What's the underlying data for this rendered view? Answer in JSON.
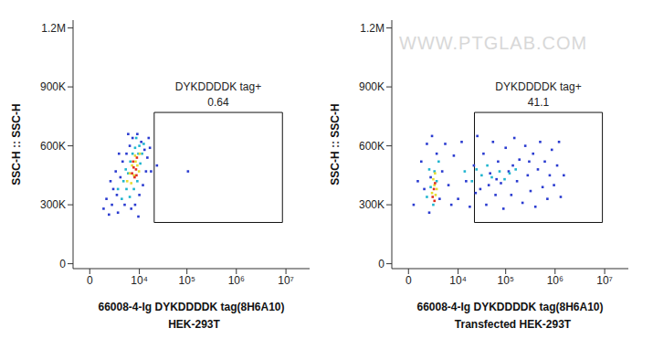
{
  "chart_data": [
    {
      "type": "scatter",
      "subtitle": "HEK-293T",
      "x_label": "66008-4-Ig DYKDDDDK tag(8H6A10)",
      "y_label": "SSC-H :: SSC-H",
      "log": "x",
      "xlim": [
        -1300,
        30000000
      ],
      "xticks": [
        0,
        {
          "value": 10000,
          "label": "10⁴"
        },
        {
          "value": 100000,
          "label": "10⁵"
        },
        {
          "value": 1000000,
          "label": "10⁶"
        },
        {
          "value": 10000000,
          "label": "10⁷"
        }
      ],
      "ylim": [
        -25000,
        1240000
      ],
      "yticks": [
        0,
        {
          "value": 300000,
          "label": "300K"
        },
        {
          "value": 600000,
          "label": "600K"
        },
        {
          "value": 900000,
          "label": "900K"
        },
        {
          "value": 1200000,
          "label": "1.2M"
        }
      ],
      "gate": {
        "label": "DYKDDDDK tag+",
        "value": 0.64,
        "xlim": [
          21000,
          8500000
        ],
        "ylim": [
          210000,
          770000
        ]
      },
      "series": [
        {
          "color": "#2a3bd0",
          "points": [
            [
              1000,
              280000
            ],
            [
              1300,
              330000
            ],
            [
              1600,
              250000
            ],
            [
              2000,
              300000
            ],
            [
              2200,
              380000
            ],
            [
              1800,
              420000
            ],
            [
              2800,
              350000
            ],
            [
              3000,
              260000
            ],
            [
              3500,
              440000
            ],
            [
              2600,
              470000
            ],
            [
              4000,
              520000
            ],
            [
              4500,
              300000
            ],
            [
              5000,
              560000
            ],
            [
              6000,
              600000
            ],
            [
              7000,
              640000
            ],
            [
              9000,
              660000
            ],
            [
              11000,
              620000
            ],
            [
              13000,
              580000
            ],
            [
              15000,
              540000
            ],
            [
              16000,
              640000
            ],
            [
              14000,
              470000
            ],
            [
              12000,
              400000
            ],
            [
              10000,
              350000
            ],
            [
              8000,
              300000
            ],
            [
              6500,
              280000
            ],
            [
              3200,
              560000
            ],
            [
              5500,
              660000
            ],
            [
              17000,
              590000
            ],
            [
              18000,
              470000
            ],
            [
              9500,
              240000
            ],
            [
              24000,
              500000
            ],
            [
              105000,
              470000
            ]
          ]
        },
        {
          "color": "#1fb5cf",
          "points": [
            [
              3000,
              380000
            ],
            [
              3800,
              330000
            ],
            [
              4200,
              420000
            ],
            [
              5000,
              380000
            ],
            [
              5500,
              460000
            ],
            [
              6200,
              520000
            ],
            [
              7000,
              560000
            ],
            [
              8000,
              590000
            ],
            [
              9500,
              560000
            ],
            [
              10500,
              510000
            ],
            [
              11500,
              560000
            ],
            [
              12500,
              610000
            ],
            [
              9000,
              420000
            ],
            [
              7500,
              380000
            ],
            [
              6000,
              340000
            ],
            [
              4800,
              480000
            ],
            [
              10000,
              600000
            ],
            [
              8500,
              640000
            ]
          ]
        },
        {
          "color": "#e6dc32",
          "points": [
            [
              5200,
              420000
            ],
            [
              6000,
              460000
            ],
            [
              6800,
              500000
            ],
            [
              7500,
              450000
            ],
            [
              8200,
              520000
            ],
            [
              9000,
              500000
            ],
            [
              8000,
              550000
            ],
            [
              9800,
              470000
            ],
            [
              6500,
              410000
            ],
            [
              10200,
              560000
            ]
          ]
        },
        {
          "color": "#e0301e",
          "points": [
            [
              6800,
              460000
            ],
            [
              7400,
              490000
            ],
            [
              7800,
              440000
            ],
            [
              8400,
              480000
            ],
            [
              7200,
              520000
            ],
            [
              8800,
              540000
            ],
            [
              8600,
              450000
            ]
          ]
        }
      ]
    },
    {
      "type": "scatter",
      "subtitle": "Transfected HEK-293T",
      "x_label": "66008-4-Ig DYKDDDDK tag(8H6A10)",
      "y_label": "SSC-H :: SSC-H",
      "log": "x",
      "watermark": "WWW.PTGLAB.COM",
      "xlim": [
        -1300,
        30000000
      ],
      "xticks": [
        0,
        {
          "value": 10000,
          "label": "10⁴"
        },
        {
          "value": 100000,
          "label": "10⁵"
        },
        {
          "value": 1000000,
          "label": "10⁶"
        },
        {
          "value": 10000000,
          "label": "10⁷"
        }
      ],
      "ylim": [
        -25000,
        1240000
      ],
      "yticks": [
        0,
        {
          "value": 300000,
          "label": "300K"
        },
        {
          "value": 600000,
          "label": "600K"
        },
        {
          "value": 900000,
          "label": "900K"
        },
        {
          "value": 1200000,
          "label": "1.2M"
        }
      ],
      "gate": {
        "label": "DYKDDDDK tag+",
        "value": 41.1,
        "xlim": [
          22600,
          9000000
        ],
        "ylim": [
          210000,
          770000
        ]
      },
      "series": [
        {
          "color": "#2a3bd0",
          "points": [
            [
              300,
              300000
            ],
            [
              600,
              420000
            ],
            [
              900,
              520000
            ],
            [
              1200,
              380000
            ],
            [
              1500,
              610000
            ],
            [
              1800,
              260000
            ],
            [
              2200,
              650000
            ],
            [
              3000,
              560000
            ],
            [
              3600,
              330000
            ],
            [
              4200,
              470000
            ],
            [
              5000,
              610000
            ],
            [
              6000,
              400000
            ],
            [
              7000,
              300000
            ],
            [
              2000,
              440000
            ],
            [
              8000,
              550000
            ],
            [
              10000,
              330000
            ],
            [
              12000,
              620000
            ],
            [
              15000,
              420000
            ],
            [
              18000,
              290000
            ],
            [
              22000,
              500000
            ],
            [
              26000,
              650000
            ],
            [
              30000,
              380000
            ],
            [
              35000,
              560000
            ],
            [
              40000,
              300000
            ],
            [
              48000,
              460000
            ],
            [
              55000,
              620000
            ],
            [
              62000,
              350000
            ],
            [
              70000,
              520000
            ],
            [
              80000,
              410000
            ],
            [
              90000,
              280000
            ],
            [
              100000,
              590000
            ],
            [
              115000,
              470000
            ],
            [
              130000,
              350000
            ],
            [
              150000,
              640000
            ],
            [
              170000,
              420000
            ],
            [
              190000,
              530000
            ],
            [
              220000,
              310000
            ],
            [
              250000,
              600000
            ],
            [
              280000,
              450000
            ],
            [
              320000,
              370000
            ],
            [
              360000,
              560000
            ],
            [
              400000,
              290000
            ],
            [
              450000,
              480000
            ],
            [
              500000,
              620000
            ],
            [
              560000,
              390000
            ],
            [
              620000,
              520000
            ],
            [
              700000,
              330000
            ],
            [
              780000,
              450000
            ],
            [
              860000,
              580000
            ],
            [
              950000,
              400000
            ],
            [
              1100000,
              500000
            ],
            [
              1300000,
              340000
            ],
            [
              1500000,
              450000
            ],
            [
              1200000,
              620000
            ],
            [
              65000,
              430000
            ],
            [
              140000,
              500000
            ],
            [
              300000,
              520000
            ],
            [
              24000,
              360000
            ],
            [
              45000,
              400000
            ]
          ]
        },
        {
          "color": "#1fb5cf",
          "points": [
            [
              1500,
              340000
            ],
            [
              2000,
              390000
            ],
            [
              2600,
              470000
            ],
            [
              3000,
              420000
            ],
            [
              3400,
              520000
            ],
            [
              2400,
              300000
            ],
            [
              1800,
              480000
            ],
            [
              14000,
              470000
            ],
            [
              20000,
              420000
            ],
            [
              25000,
              480000
            ],
            [
              32000,
              450000
            ],
            [
              42000,
              500000
            ],
            [
              52000,
              440000
            ],
            [
              75000,
              470000
            ],
            [
              95000,
              430000
            ],
            [
              120000,
              460000
            ],
            [
              160000,
              480000
            ]
          ]
        },
        {
          "color": "#e6dc32",
          "points": [
            [
              2200,
              360000
            ],
            [
              2600,
              400000
            ],
            [
              2800,
              350000
            ],
            [
              2400,
              430000
            ],
            [
              3000,
              380000
            ],
            [
              2700,
              460000
            ]
          ]
        },
        {
          "color": "#e0301e",
          "points": [
            [
              2500,
              380000
            ],
            [
              2700,
              410000
            ],
            [
              2300,
              340000
            ],
            [
              2600,
              320000
            ]
          ]
        }
      ]
    }
  ]
}
